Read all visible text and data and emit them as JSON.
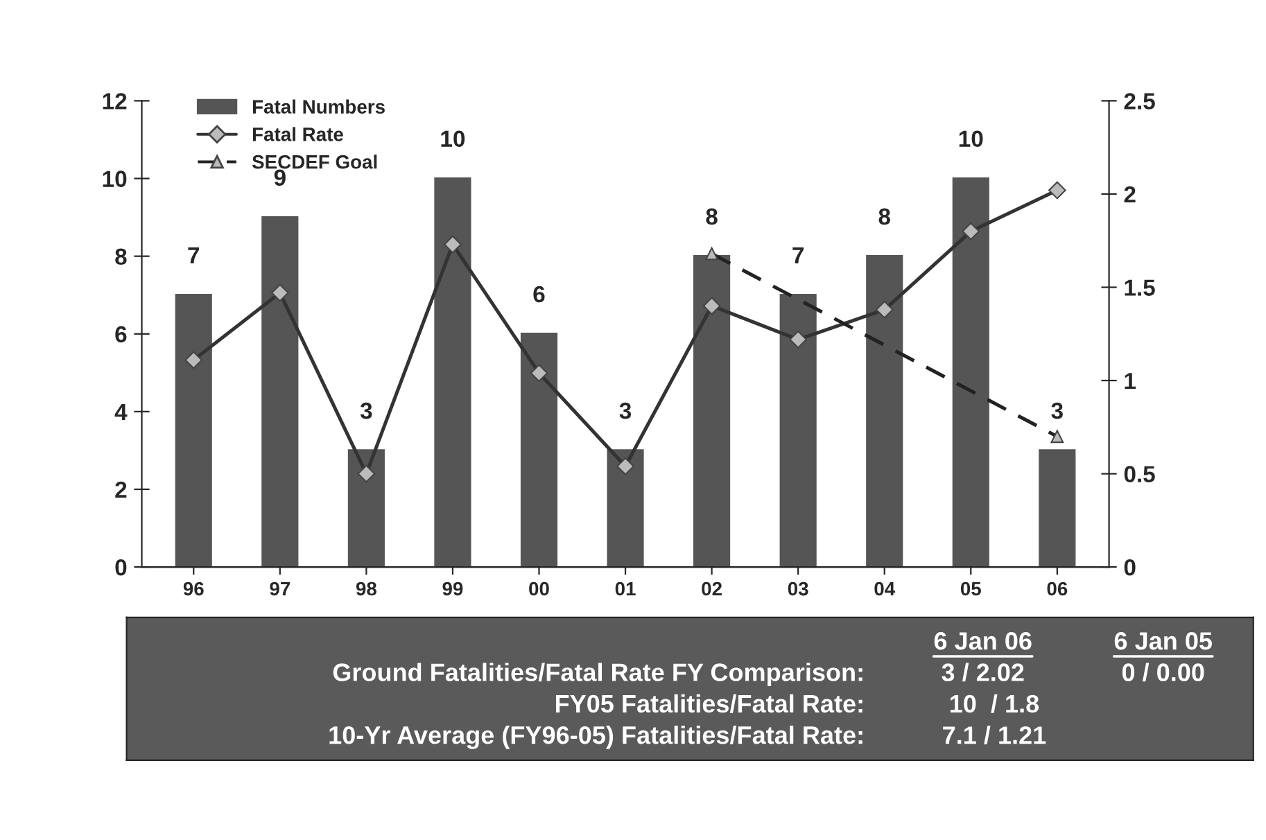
{
  "chart_data": {
    "type": "bar",
    "categories": [
      "96",
      "97",
      "98",
      "99",
      "00",
      "01",
      "02",
      "03",
      "04",
      "05",
      "06"
    ],
    "series": [
      {
        "name": "Fatal Numbers",
        "color": "#555555",
        "values": [
          7,
          9,
          3,
          10,
          6,
          3,
          8,
          7,
          8,
          10,
          3
        ],
        "value_labels": [
          "7",
          "9",
          "3",
          "10",
          "6",
          "3",
          "8",
          "7",
          "8",
          "10",
          "3"
        ]
      },
      {
        "name": "Fatal Rate",
        "type": "line",
        "axis": "y2",
        "color": "#333333",
        "marker": "diamond",
        "line_style": "solid",
        "values": [
          1.11,
          1.47,
          0.5,
          1.73,
          1.04,
          0.54,
          1.4,
          1.22,
          1.38,
          1.8,
          2.02
        ]
      },
      {
        "name": "SECDEF Goal",
        "type": "line",
        "axis": "y2",
        "color": "#222222",
        "marker": "triangle",
        "line_style": "dashed",
        "values": [
          null,
          null,
          null,
          null,
          null,
          null,
          1.68,
          null,
          null,
          null,
          0.7
        ]
      }
    ],
    "ylim": [
      0,
      12
    ],
    "yticks": [
      0,
      2,
      4,
      6,
      8,
      10,
      12
    ],
    "y2lim": [
      0,
      2.5
    ],
    "y2ticks": [
      0,
      0.5,
      1,
      1.5,
      2,
      2.5
    ],
    "grid": false,
    "legend": "top left",
    "annotations": [
      "6 Jan 06",
      "6 Jan 05",
      "Ground Fatalities/Fatal Rate FY Comparison:",
      "3 / 2.02",
      "0 / 0.00",
      "FY05 Fatalities/Fatal Rate:",
      "10  / 1.8",
      "10-Yr Average (FY96-05) Fatalities/Fatal Rate:",
      "7.1 / 1.21"
    ]
  }
}
